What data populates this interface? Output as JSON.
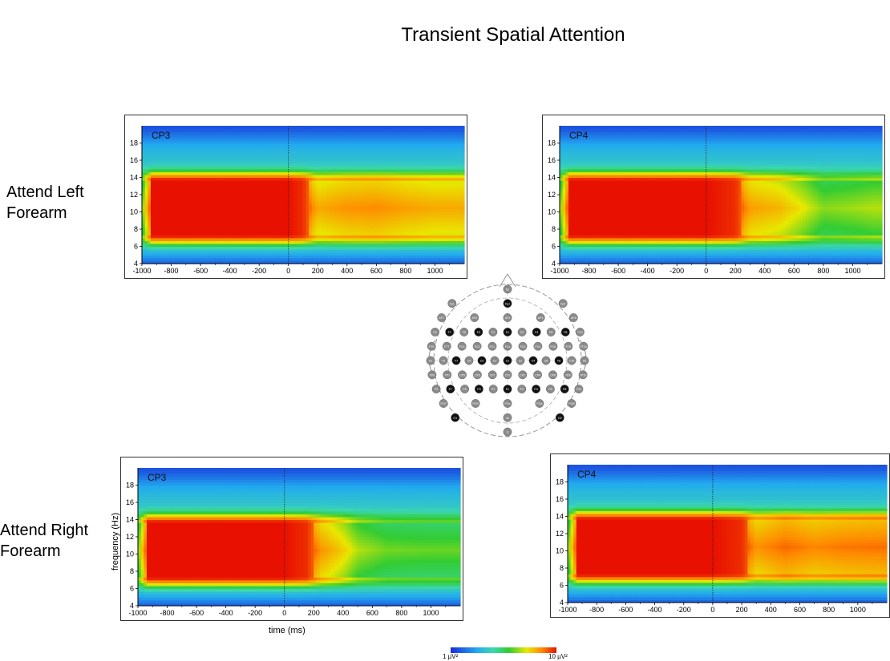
{
  "title": "Transient Spatial Attention",
  "rows": {
    "attend_left": "Attend Left\nForearm",
    "attend_right": "Attend Right\nForearm"
  },
  "axis_titles": {
    "frequency": "frequency (Hz)",
    "time": "time (ms)"
  },
  "colorbar": {
    "min_label": "1 µV²",
    "max_label": "10 µV²",
    "colors": [
      "#1a2bd8",
      "#22a9f0",
      "#3bd7b0",
      "#33cc33",
      "#e8e800",
      "#ff8a00",
      "#e81000"
    ]
  },
  "chart_data": [
    {
      "type": "heatmap",
      "channel": "CP3",
      "condition": "Attend Left Forearm",
      "xlim": [
        -1000,
        1200
      ],
      "ylim": [
        4,
        20
      ],
      "x_ticks": [
        -1000,
        -800,
        -600,
        -400,
        -200,
        0,
        200,
        400,
        600,
        800,
        1000
      ],
      "y_ticks": [
        4,
        6,
        8,
        10,
        12,
        14,
        16,
        18
      ],
      "event_marker_ms": 0,
      "alpha_band_hz": [
        8,
        13
      ],
      "pre_stimulus_power": "maximum (red) from -900 to 100 ms",
      "post_stimulus_power": "reduced alpha after ~200 ms, residual orange band near 11 Hz to 1200 ms",
      "profile_ms": [
        -900,
        0,
        100,
        200,
        400,
        600,
        800,
        1000,
        1150
      ],
      "alpha_power": [
        1.0,
        1.0,
        0.96,
        0.78,
        0.82,
        0.83,
        0.8,
        0.78,
        0.78
      ]
    },
    {
      "type": "heatmap",
      "channel": "CP4",
      "condition": "Attend Left Forearm",
      "xlim": [
        -1000,
        1200
      ],
      "ylim": [
        4,
        20
      ],
      "x_ticks": [
        -1000,
        -800,
        -600,
        -400,
        -200,
        0,
        200,
        400,
        600,
        800,
        1000
      ],
      "y_ticks": [
        4,
        6,
        8,
        10,
        12,
        14,
        16,
        18
      ],
      "event_marker_ms": 0,
      "alpha_band_hz": [
        8,
        13
      ],
      "pre_stimulus_power": "maximum (red) from -900 to 200 ms",
      "post_stimulus_power": "orange tail fading to ~650 ms, then yellow-green",
      "profile_ms": [
        -900,
        0,
        200,
        300,
        500,
        650,
        800,
        1000,
        1150
      ],
      "alpha_power": [
        1.0,
        1.0,
        0.96,
        0.8,
        0.76,
        0.68,
        0.58,
        0.6,
        0.62
      ]
    },
    {
      "type": "heatmap",
      "channel": "CP3",
      "condition": "Attend Right Forearm",
      "xlim": [
        -1000,
        1200
      ],
      "ylim": [
        4,
        20
      ],
      "x_ticks": [
        -1000,
        -800,
        -600,
        -400,
        -200,
        0,
        200,
        400,
        600,
        800,
        1000
      ],
      "y_ticks": [
        4,
        6,
        8,
        10,
        12,
        14,
        16,
        18
      ],
      "event_marker_ms": 0,
      "alpha_band_hz": [
        8,
        13
      ],
      "pre_stimulus_power": "maximum (red) from -900 to 150 ms",
      "post_stimulus_power": "tapered orange tail to ~450 ms, then yellow-green",
      "profile_ms": [
        -900,
        0,
        150,
        250,
        400,
        500,
        700,
        1000,
        1150
      ],
      "alpha_power": [
        1.0,
        1.0,
        0.96,
        0.82,
        0.72,
        0.62,
        0.56,
        0.55,
        0.55
      ]
    },
    {
      "type": "heatmap",
      "channel": "CP4",
      "condition": "Attend Right Forearm",
      "xlim": [
        -1000,
        1200
      ],
      "ylim": [
        4,
        20
      ],
      "x_ticks": [
        -1000,
        -800,
        -600,
        -400,
        -200,
        0,
        200,
        400,
        600,
        800,
        1000
      ],
      "y_ticks": [
        4,
        6,
        8,
        10,
        12,
        14,
        16,
        18
      ],
      "event_marker_ms": 0,
      "alpha_band_hz": [
        8,
        13
      ],
      "pre_stimulus_power": "maximum (red) from -900 to 200 ms",
      "post_stimulus_power": "sustained orange-red alpha to 1200 ms",
      "profile_ms": [
        -900,
        0,
        200,
        300,
        500,
        700,
        900,
        1150
      ],
      "alpha_power": [
        1.0,
        1.0,
        0.96,
        0.82,
        0.88,
        0.84,
        0.86,
        0.87
      ]
    }
  ],
  "electrode_map": {
    "rows": [
      [
        "Nz"
      ],
      [
        "Fp1",
        "Fpz",
        "Fp2"
      ],
      [
        "AF7",
        "AF3",
        "AFz",
        "AF4",
        "AF8"
      ],
      [
        "F9",
        "F7",
        "F5",
        "F3",
        "F1",
        "Fz",
        "F2",
        "F4",
        "F6",
        "F8",
        "F10"
      ],
      [
        "FT9",
        "FT7",
        "FC5",
        "FC3",
        "FC1",
        "FCz",
        "FC2",
        "FC4",
        "FC6",
        "FT8",
        "FT10"
      ],
      [
        "A1",
        "T9",
        "T7",
        "C5",
        "C3",
        "C1",
        "Cz",
        "C2",
        "C4",
        "C6",
        "T8",
        "T10",
        "A2"
      ],
      [
        "TP9",
        "TP7",
        "CP5",
        "CP3",
        "CP1",
        "CPz",
        "CP2",
        "CP4",
        "CP6",
        "TP8",
        "TP10"
      ],
      [
        "P9",
        "P7",
        "P5",
        "P3",
        "P1",
        "Pz",
        "P2",
        "P4",
        "P6",
        "P8",
        "P10"
      ],
      [
        "PO7",
        "PO3",
        "POz",
        "PO4",
        "PO8"
      ],
      [
        "O1",
        "Oz",
        "O2"
      ],
      [
        "Iz"
      ]
    ],
    "highlighted": [
      "Fpz",
      "F7",
      "F3",
      "Fz",
      "F4",
      "F8",
      "T7",
      "C3",
      "Cz",
      "C4",
      "T8",
      "P7",
      "P3",
      "Pz",
      "P4",
      "P8",
      "O1",
      "O2"
    ]
  }
}
